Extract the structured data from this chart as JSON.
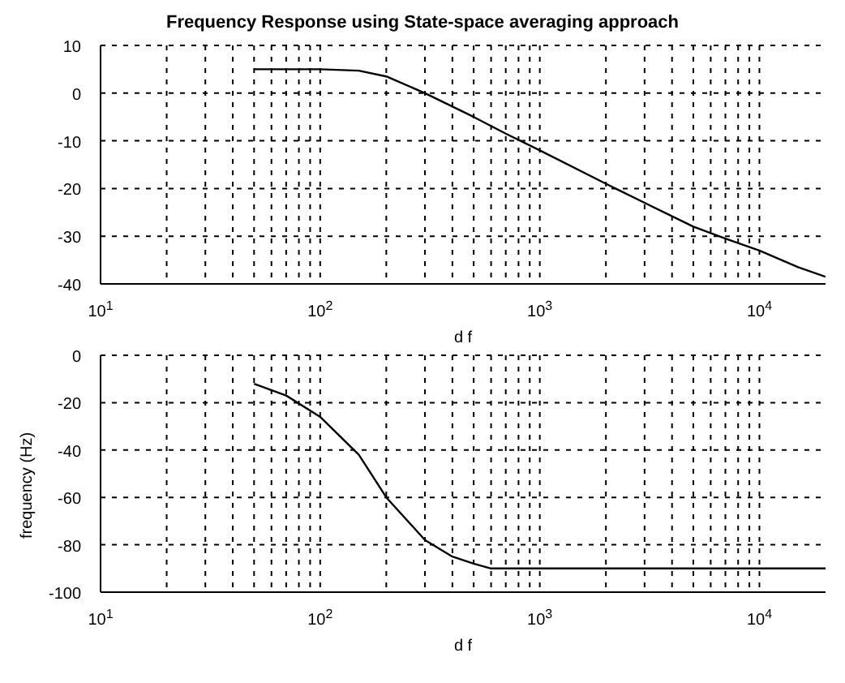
{
  "chart_data": [
    {
      "type": "line",
      "title": "Frequency Response using State-space averaging approach",
      "xlabel": "d f",
      "log": "x",
      "grid": true,
      "legend": false,
      "marker": "none",
      "line_style": "solid",
      "xlim": [
        10,
        20000
      ],
      "ylim": [
        -40,
        10
      ],
      "yticks": [
        -40,
        -30,
        -20,
        -10,
        0,
        10
      ],
      "xticks": [
        {
          "value": 10,
          "label": "10$^{1}$"
        },
        {
          "value": 20,
          "label": null
        },
        {
          "value": 30,
          "label": null
        },
        {
          "value": 40,
          "label": null
        },
        {
          "value": 50,
          "label": null
        },
        {
          "value": 60,
          "label": null
        },
        {
          "value": 70,
          "label": null
        },
        {
          "value": 80,
          "label": null
        },
        {
          "value": 90,
          "label": null
        },
        {
          "value": 100,
          "label": "10$^{2}$"
        },
        {
          "value": 200,
          "label": null
        },
        {
          "value": 300,
          "label": null
        },
        {
          "value": 400,
          "label": null
        },
        {
          "value": 500,
          "label": null
        },
        {
          "value": 600,
          "label": null
        },
        {
          "value": 700,
          "label": null
        },
        {
          "value": 800,
          "label": null
        },
        {
          "value": 900,
          "label": null
        },
        {
          "value": 1000,
          "label": "10$^{3}$"
        },
        {
          "value": 2000,
          "label": null
        },
        {
          "value": 3000,
          "label": null
        },
        {
          "value": 4000,
          "label": null
        },
        {
          "value": 5000,
          "label": null
        },
        {
          "value": 6000,
          "label": null
        },
        {
          "value": 7000,
          "label": null
        },
        {
          "value": 8000,
          "label": null
        },
        {
          "value": 9000,
          "label": null
        },
        {
          "value": 10000,
          "label": "10$^{4}$"
        }
      ],
      "series": [
        {
          "color": "#000000",
          "x": [
            50,
            100,
            150,
            200,
            300,
            500,
            700,
            1000,
            2000,
            3000,
            5000,
            7000,
            10000,
            15000,
            20000
          ],
          "values": [
            5,
            5,
            4.7,
            3.5,
            0,
            -5,
            -8.5,
            -12,
            -19,
            -23,
            -28,
            -30.5,
            -33,
            -36.5,
            -38.5
          ]
        }
      ]
    },
    {
      "type": "line",
      "xlabel": "d f",
      "ylabel": "frequency (Hz)",
      "log": "x",
      "grid": true,
      "legend": false,
      "marker": "none",
      "line_style": "solid",
      "xlim": [
        10,
        20000
      ],
      "ylim": [
        -100,
        0
      ],
      "yticks": [
        -100,
        -80,
        -60,
        -40,
        -20,
        0
      ],
      "xticks": [
        {
          "value": 10,
          "label": "10$^{1}$"
        },
        {
          "value": 20,
          "label": null
        },
        {
          "value": 30,
          "label": null
        },
        {
          "value": 40,
          "label": null
        },
        {
          "value": 50,
          "label": null
        },
        {
          "value": 60,
          "label": null
        },
        {
          "value": 70,
          "label": null
        },
        {
          "value": 80,
          "label": null
        },
        {
          "value": 90,
          "label": null
        },
        {
          "value": 100,
          "label": "10$^{2}$"
        },
        {
          "value": 200,
          "label": null
        },
        {
          "value": 300,
          "label": null
        },
        {
          "value": 400,
          "label": null
        },
        {
          "value": 500,
          "label": null
        },
        {
          "value": 600,
          "label": null
        },
        {
          "value": 700,
          "label": null
        },
        {
          "value": 800,
          "label": null
        },
        {
          "value": 900,
          "label": null
        },
        {
          "value": 1000,
          "label": "10$^{3}$"
        },
        {
          "value": 2000,
          "label": null
        },
        {
          "value": 3000,
          "label": null
        },
        {
          "value": 4000,
          "label": null
        },
        {
          "value": 5000,
          "label": null
        },
        {
          "value": 6000,
          "label": null
        },
        {
          "value": 7000,
          "label": null
        },
        {
          "value": 8000,
          "label": null
        },
        {
          "value": 9000,
          "label": null
        },
        {
          "value": 10000,
          "label": "10$^{4}$"
        }
      ],
      "series": [
        {
          "color": "#000000",
          "x": [
            50,
            70,
            100,
            150,
            200,
            300,
            400,
            500,
            600,
            1000,
            20000
          ],
          "values": [
            -12,
            -17,
            -26,
            -42,
            -60,
            -78,
            -85,
            -88,
            -90,
            -90,
            -90
          ]
        }
      ]
    }
  ]
}
